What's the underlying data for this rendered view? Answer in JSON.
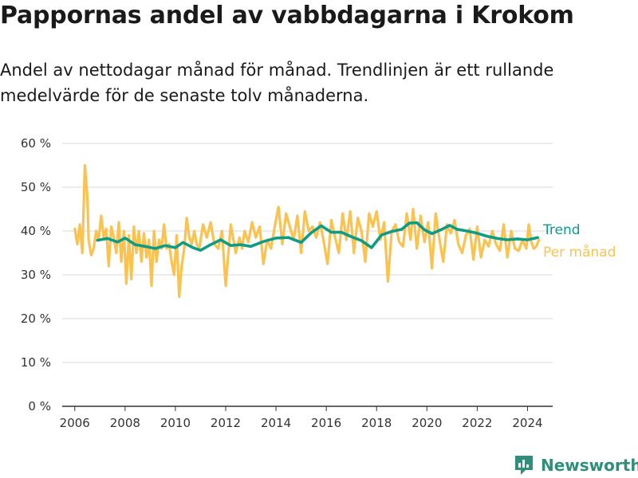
{
  "title": "Pappornas andel av vabbdagarna i Krokom",
  "subtitle": "Andel av nettodagar månad för månad. Trendlinjen är ett rullande medelvärde för de senaste tolv månaderna.",
  "logo": {
    "text": "Newsworthy",
    "icon": "bar-chart-logo-icon"
  },
  "colors": {
    "trend": "#0f9c85",
    "monthly": "#fcc24f",
    "grid": "#d9d9d9",
    "axis": "#333333"
  },
  "chart_data": {
    "type": "line",
    "x_unit": "decimal-year",
    "ylim": [
      0,
      60
    ],
    "xlim": [
      2005.5,
      2025.0
    ],
    "y_ticks": [
      0,
      10,
      20,
      30,
      40,
      50,
      60
    ],
    "y_tick_labels": [
      "0 %",
      "10 %",
      "20 %",
      "30 %",
      "40 %",
      "50 %",
      "60 %"
    ],
    "x_ticks": [
      2006,
      2008,
      2010,
      2012,
      2014,
      2016,
      2018,
      2020,
      2022,
      2024
    ],
    "x_tick_labels": [
      "2006",
      "2008",
      "2010",
      "2012",
      "2014",
      "2016",
      "2018",
      "2020",
      "2022",
      "2024"
    ],
    "grid": true,
    "legend_position": "right",
    "series": [
      {
        "name": "Trend",
        "x": [
          2006.9,
          2007.3,
          2007.7,
          2008.0,
          2008.4,
          2008.8,
          2009.2,
          2009.6,
          2010.0,
          2010.3,
          2010.7,
          2011.0,
          2011.4,
          2011.8,
          2012.2,
          2012.6,
          2013.0,
          2013.5,
          2014.0,
          2014.5,
          2015.0,
          2015.4,
          2015.8,
          2016.2,
          2016.6,
          2017.0,
          2017.4,
          2017.8,
          2018.2,
          2018.6,
          2019.0,
          2019.3,
          2019.6,
          2019.9,
          2020.2,
          2020.6,
          2020.9,
          2021.2,
          2021.6,
          2022.0,
          2022.4,
          2022.8,
          2023.2,
          2023.6,
          2024.0,
          2024.4
        ],
        "values": [
          37.9,
          38.3,
          37.5,
          38.4,
          36.9,
          36.5,
          36.0,
          36.7,
          36.2,
          37.4,
          36.2,
          35.6,
          36.9,
          38.0,
          36.7,
          36.9,
          36.5,
          37.6,
          38.4,
          38.5,
          37.4,
          39.6,
          41.2,
          39.7,
          39.7,
          38.7,
          37.8,
          36.2,
          39.1,
          39.9,
          40.4,
          41.8,
          41.9,
          40.3,
          39.4,
          40.4,
          41.3,
          40.4,
          40.0,
          39.5,
          38.8,
          38.3,
          38.0,
          38.2,
          38.0,
          38.5
        ]
      },
      {
        "name": "Per månad",
        "x": [
          2006.0,
          2006.1,
          2006.2,
          2006.3,
          2006.4,
          2006.5,
          2006.55,
          2006.65,
          2006.75,
          2006.85,
          2006.95,
          2007.05,
          2007.15,
          2007.25,
          2007.35,
          2007.45,
          2007.55,
          2007.65,
          2007.75,
          2007.85,
          2007.95,
          2008.05,
          2008.15,
          2008.25,
          2008.35,
          2008.45,
          2008.55,
          2008.65,
          2008.75,
          2008.85,
          2008.95,
          2009.05,
          2009.15,
          2009.25,
          2009.35,
          2009.45,
          2009.55,
          2009.65,
          2009.75,
          2009.85,
          2009.95,
          2010.05,
          2010.15,
          2010.25,
          2010.35,
          2010.45,
          2010.55,
          2010.65,
          2010.75,
          2010.85,
          2010.95,
          2011.1,
          2011.25,
          2011.4,
          2011.55,
          2011.7,
          2011.85,
          2012.0,
          2012.2,
          2012.4,
          2012.55,
          2012.65,
          2012.75,
          2012.9,
          2013.05,
          2013.2,
          2013.35,
          2013.5,
          2013.65,
          2013.8,
          2013.95,
          2014.1,
          2014.25,
          2014.4,
          2014.55,
          2014.7,
          2014.85,
          2015.0,
          2015.15,
          2015.3,
          2015.45,
          2015.6,
          2015.75,
          2015.9,
          2016.05,
          2016.2,
          2016.35,
          2016.5,
          2016.65,
          2016.8,
          2016.95,
          2017.1,
          2017.25,
          2017.4,
          2017.55,
          2017.7,
          2017.85,
          2018.0,
          2018.15,
          2018.3,
          2018.45,
          2018.6,
          2018.75,
          2018.9,
          2019.05,
          2019.2,
          2019.35,
          2019.45,
          2019.6,
          2019.75,
          2019.9,
          2020.05,
          2020.2,
          2020.35,
          2020.5,
          2020.65,
          2020.8,
          2020.95,
          2021.1,
          2021.25,
          2021.4,
          2021.55,
          2021.7,
          2021.85,
          2022.0,
          2022.15,
          2022.3,
          2022.45,
          2022.6,
          2022.75,
          2022.9,
          2023.05,
          2023.2,
          2023.35,
          2023.5,
          2023.65,
          2023.8,
          2023.95,
          2024.05,
          2024.15,
          2024.25,
          2024.35,
          2024.45
        ],
        "values": [
          40.5,
          37.0,
          41.5,
          35.0,
          55.0,
          48.0,
          38.0,
          34.5,
          36.0,
          40.0,
          38.0,
          43.5,
          38.5,
          40.5,
          32.0,
          41.0,
          38.5,
          35.0,
          42.0,
          33.0,
          40.0,
          28.0,
          39.0,
          29.0,
          41.0,
          35.0,
          40.0,
          33.0,
          39.5,
          34.0,
          38.0,
          27.5,
          40.0,
          33.0,
          38.0,
          36.0,
          41.5,
          36.0,
          37.0,
          33.0,
          30.0,
          39.0,
          25.0,
          32.0,
          36.0,
          43.0,
          38.5,
          37.0,
          40.0,
          37.0,
          36.0,
          41.5,
          38.5,
          42.0,
          37.0,
          36.0,
          40.0,
          27.5,
          41.5,
          35.0,
          38.5,
          36.0,
          40.0,
          37.5,
          42.0,
          38.5,
          41.0,
          32.5,
          38.0,
          36.0,
          41.0,
          45.5,
          37.0,
          44.0,
          41.0,
          38.0,
          43.5,
          35.0,
          44.5,
          40.0,
          41.0,
          38.5,
          42.0,
          37.5,
          32.5,
          42.5,
          38.5,
          35.0,
          44.0,
          38.0,
          44.5,
          35.0,
          43.0,
          40.0,
          33.0,
          44.0,
          41.0,
          44.5,
          38.0,
          42.0,
          28.5,
          40.0,
          41.5,
          37.5,
          36.5,
          44.0,
          38.0,
          45.0,
          36.0,
          43.5,
          37.5,
          42.0,
          31.5,
          44.0,
          38.0,
          33.0,
          41.5,
          39.5,
          42.5,
          37.0,
          35.0,
          39.0,
          40.5,
          33.5,
          41.0,
          34.0,
          38.0,
          36.5,
          40.0,
          37.0,
          35.5,
          41.5,
          34.0,
          40.0,
          36.0,
          35.5,
          38.0,
          36.0,
          41.5,
          37.5,
          36.0,
          36.5,
          38.0
        ]
      }
    ]
  }
}
